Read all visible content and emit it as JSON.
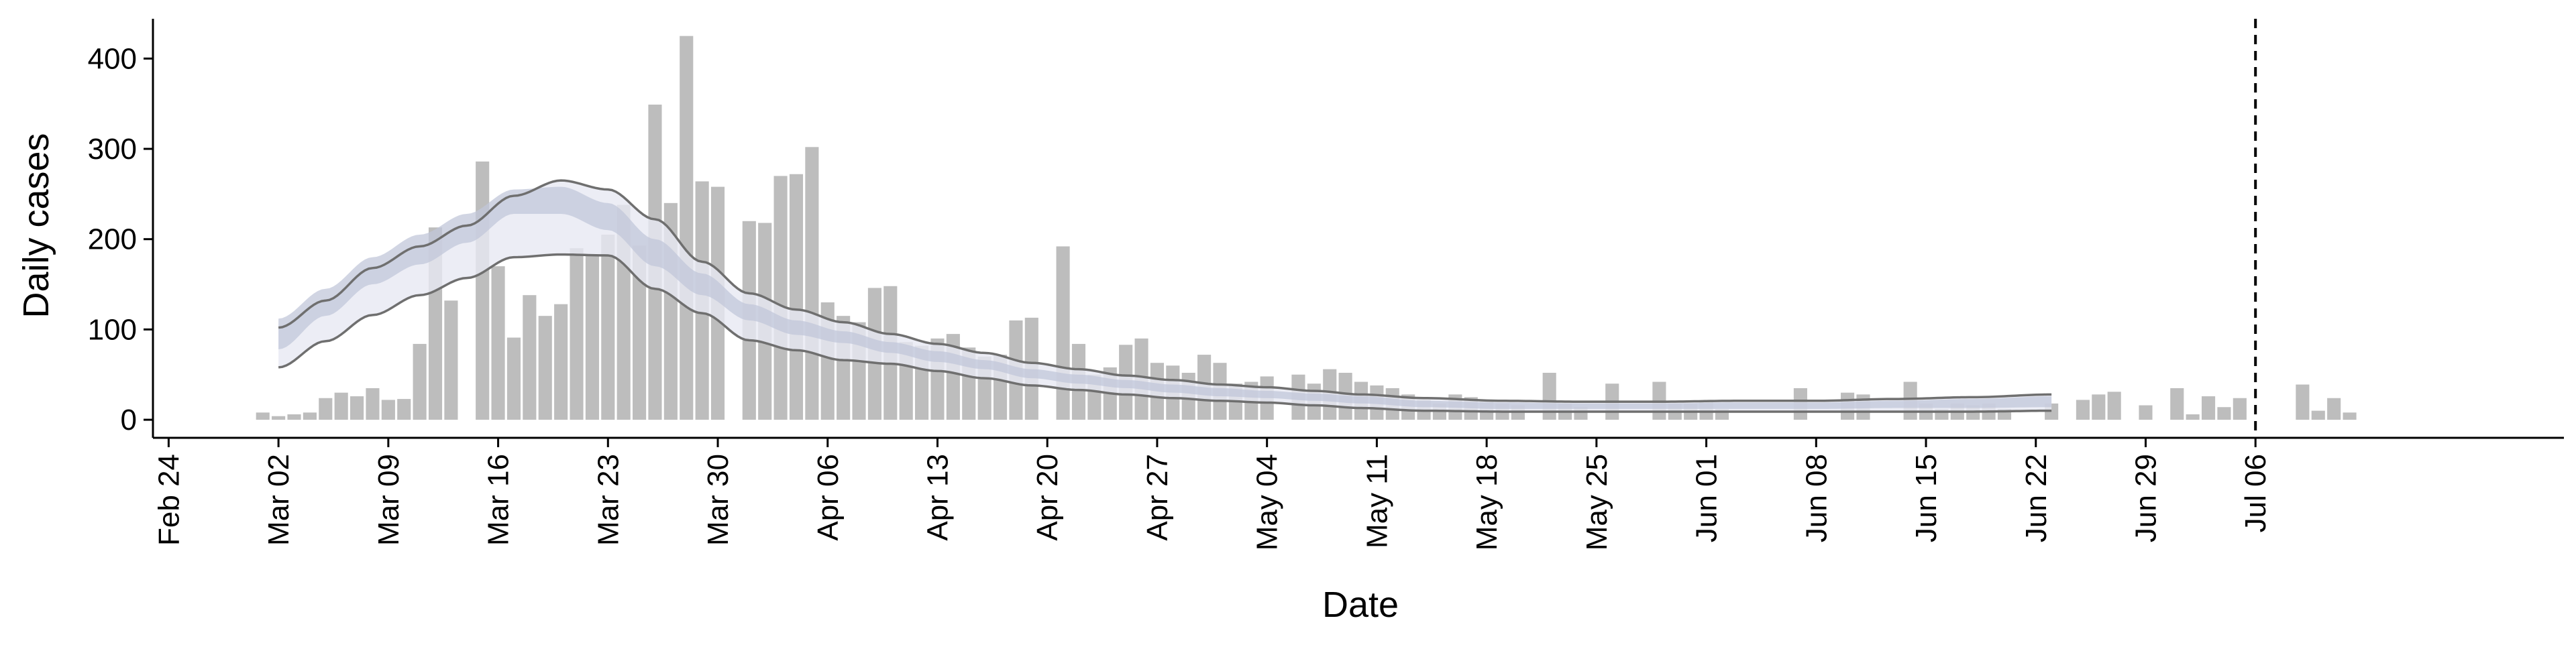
{
  "chart_data": {
    "type": "bar",
    "xlabel": "Date",
    "ylabel": "Daily cases",
    "ylim": [
      -20,
      450
    ],
    "yticks": [
      0,
      100,
      200,
      300,
      400
    ],
    "x_start": "Feb 24",
    "x_end_day": 153,
    "xticks": [
      {
        "day": 0,
        "label": "Feb 24"
      },
      {
        "day": 7,
        "label": "Mar 02"
      },
      {
        "day": 14,
        "label": "Mar 09"
      },
      {
        "day": 21,
        "label": "Mar 16"
      },
      {
        "day": 28,
        "label": "Mar 23"
      },
      {
        "day": 35,
        "label": "Mar 30"
      },
      {
        "day": 42,
        "label": "Apr 06"
      },
      {
        "day": 49,
        "label": "Apr 13"
      },
      {
        "day": 56,
        "label": "Apr 20"
      },
      {
        "day": 63,
        "label": "Apr 27"
      },
      {
        "day": 70,
        "label": "May 04"
      },
      {
        "day": 77,
        "label": "May 11"
      },
      {
        "day": 84,
        "label": "May 18"
      },
      {
        "day": 91,
        "label": "May 25"
      },
      {
        "day": 98,
        "label": "Jun 01"
      },
      {
        "day": 105,
        "label": "Jun 08"
      },
      {
        "day": 112,
        "label": "Jun 15"
      },
      {
        "day": 119,
        "label": "Jun 22"
      },
      {
        "day": 126,
        "label": "Jun 29"
      },
      {
        "day": 133,
        "label": "Jul 06"
      }
    ],
    "bar_start_day": 6,
    "daily_cases": [
      8,
      4,
      6,
      8,
      24,
      30,
      26,
      35,
      22,
      23,
      84,
      213,
      132,
      0,
      286,
      170,
      91,
      138,
      115,
      128,
      190,
      183,
      205,
      238,
      193,
      349,
      240,
      425,
      264,
      258,
      0,
      220,
      218,
      270,
      272,
      302,
      130,
      115,
      108,
      146,
      148,
      86,
      82,
      90,
      95,
      80,
      70,
      72,
      110,
      113,
      0,
      192,
      84,
      50,
      58,
      83,
      90,
      63,
      60,
      52,
      72,
      63,
      40,
      42,
      48,
      0,
      50,
      40,
      56,
      52,
      42,
      38,
      35,
      28,
      22,
      18,
      28,
      25,
      20,
      18,
      16,
      0,
      52,
      18,
      14,
      0,
      40,
      0,
      0,
      42,
      18,
      18,
      20,
      12,
      0,
      0,
      0,
      0,
      35,
      0,
      0,
      30,
      28,
      0,
      0,
      42,
      18,
      12,
      18,
      16,
      18,
      12,
      0,
      0,
      18,
      0,
      22,
      28,
      31,
      0,
      16,
      0,
      35,
      6,
      26,
      14,
      24,
      0,
      0,
      0,
      39,
      10,
      24,
      8
    ],
    "vline_day": 133,
    "series": [
      {
        "style": "band",
        "start_day": 7,
        "end_day": 120,
        "knots": [
          [
            7,
            78,
            112
          ],
          [
            10,
            115,
            145
          ],
          [
            13,
            150,
            180
          ],
          [
            16,
            172,
            205
          ],
          [
            19,
            196,
            228
          ],
          [
            22,
            228,
            255
          ],
          [
            25,
            228,
            258
          ],
          [
            28,
            210,
            240
          ],
          [
            31,
            170,
            200
          ],
          [
            34,
            138,
            162
          ],
          [
            37,
            110,
            128
          ],
          [
            40,
            94,
            110
          ],
          [
            43,
            85,
            98
          ],
          [
            46,
            74,
            86
          ],
          [
            49,
            64,
            76
          ],
          [
            52,
            56,
            66
          ],
          [
            55,
            46,
            56
          ],
          [
            58,
            40,
            50
          ],
          [
            61,
            35,
            44
          ],
          [
            64,
            30,
            39
          ],
          [
            67,
            26,
            35
          ],
          [
            70,
            24,
            32
          ],
          [
            73,
            21,
            29
          ],
          [
            76,
            18,
            26
          ],
          [
            80,
            14,
            21
          ],
          [
            85,
            12,
            19
          ],
          [
            90,
            12,
            18
          ],
          [
            95,
            12,
            18
          ],
          [
            100,
            12,
            19
          ],
          [
            105,
            12,
            19
          ],
          [
            110,
            13,
            21
          ],
          [
            115,
            13,
            23
          ],
          [
            120,
            14,
            26
          ]
        ]
      },
      {
        "style": "band",
        "start_day": 7,
        "end_day": 120,
        "knots": [
          [
            7,
            58,
            102
          ],
          [
            10,
            87,
            132
          ],
          [
            13,
            116,
            168
          ],
          [
            16,
            138,
            192
          ],
          [
            19,
            157,
            215
          ],
          [
            22,
            180,
            248
          ],
          [
            25,
            183,
            265
          ],
          [
            28,
            182,
            255
          ],
          [
            31,
            145,
            222
          ],
          [
            34,
            118,
            175
          ],
          [
            37,
            88,
            140
          ],
          [
            40,
            77,
            122
          ],
          [
            43,
            66,
            108
          ],
          [
            46,
            62,
            95
          ],
          [
            49,
            54,
            84
          ],
          [
            52,
            46,
            74
          ],
          [
            55,
            38,
            63
          ],
          [
            58,
            33,
            56
          ],
          [
            61,
            28,
            49
          ],
          [
            64,
            24,
            44
          ],
          [
            67,
            21,
            39
          ],
          [
            70,
            19,
            36
          ],
          [
            73,
            16,
            32
          ],
          [
            76,
            13,
            28
          ],
          [
            80,
            10,
            24
          ],
          [
            85,
            9,
            21
          ],
          [
            90,
            9,
            20
          ],
          [
            95,
            9,
            20
          ],
          [
            100,
            9,
            21
          ],
          [
            105,
            9,
            21
          ],
          [
            110,
            9,
            23
          ],
          [
            115,
            9,
            25
          ],
          [
            120,
            10,
            28
          ]
        ]
      }
    ],
    "colors": {
      "bars": "#bdbdbd",
      "band_outer": "#e7e9f2",
      "band_inner": "#c1c7da",
      "band_lines": "#6f6f6f",
      "axis": "#000000"
    }
  }
}
